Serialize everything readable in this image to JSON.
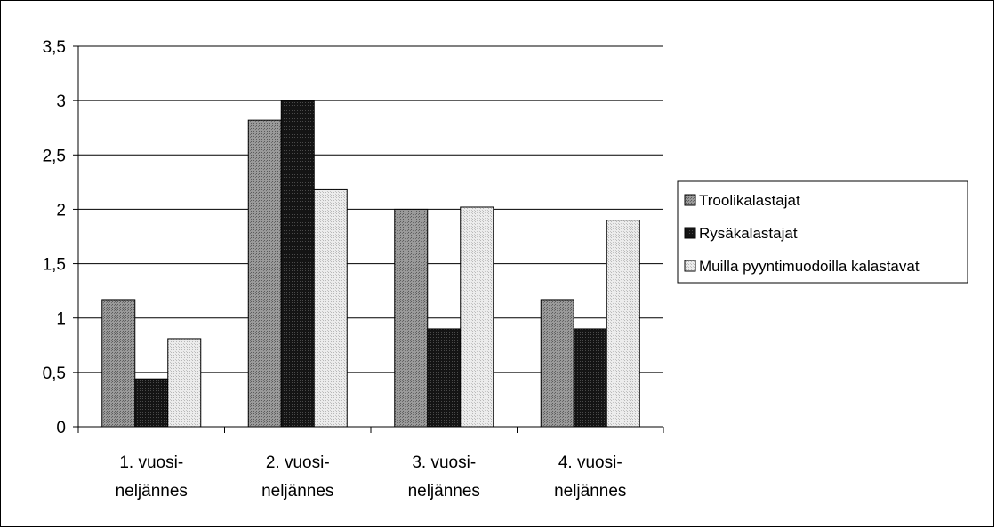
{
  "chart_data": {
    "type": "bar",
    "title": "",
    "xlabel": "",
    "ylabel": "",
    "categories": [
      [
        "1. vuosi-",
        "neljännes"
      ],
      [
        "2. vuosi-",
        "neljännes"
      ],
      [
        "3. vuosi-",
        "neljännes"
      ],
      [
        "4. vuosi-",
        "neljännes"
      ]
    ],
    "series": [
      {
        "name": "Troolikalastajat",
        "values": [
          1.17,
          2.82,
          2.0,
          1.17
        ],
        "color": "#8a8a8a"
      },
      {
        "name": "Rysäkalastajat",
        "values": [
          0.44,
          3.0,
          0.9,
          0.9
        ],
        "color": "#1e1e1e"
      },
      {
        "name": "Muilla pyyntimuodoilla kalastavat",
        "values": [
          0.81,
          2.18,
          2.02,
          1.9
        ],
        "color": "#e2e2e2"
      }
    ],
    "ylim": [
      0,
      3.5
    ],
    "yticks": [
      "0",
      "0,5",
      "1",
      "1,5",
      "2",
      "2,5",
      "3",
      "3,5"
    ],
    "grid": true,
    "legend_position": "right"
  }
}
